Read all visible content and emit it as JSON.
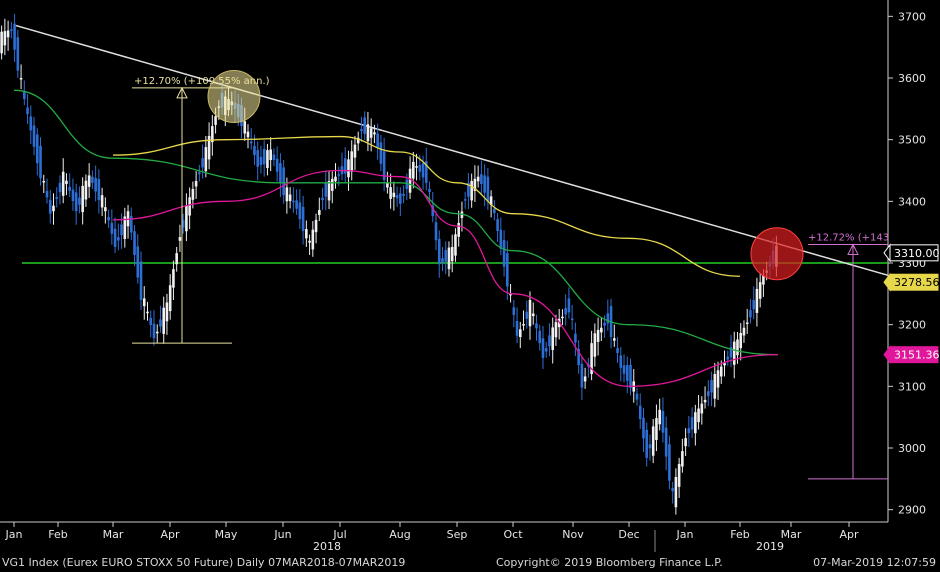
{
  "chart_data": {
    "type": "candlestick",
    "y_ticks": [
      "2900",
      "3000",
      "3100",
      "3200",
      "3300",
      "3400",
      "3500",
      "3600",
      "3700"
    ],
    "ylim": [
      2880,
      3720
    ],
    "x_ticks": [
      "Jan",
      "Feb",
      "Mar",
      "Apr",
      "May",
      "Jun",
      "Jul",
      "Aug",
      "Sep",
      "Oct",
      "Nov",
      "Dec",
      "Jan",
      "Feb",
      "Mar",
      "Apr"
    ],
    "year_labels": [
      "2018",
      "2019"
    ],
    "price_tags": [
      {
        "value": 3310.0,
        "label": "3310.00",
        "color": "#000000",
        "text_color": "#ffffff",
        "border": "#ffffff"
      },
      {
        "value": 3278.56,
        "label": "3278.56",
        "color": "#e6d84a",
        "text_color": "#000000",
        "border": "#e6d84a"
      },
      {
        "value": 3151.36,
        "label": "3151.36",
        "color": "#e0179a",
        "text_color": "#ffffff",
        "border": "#e0179a"
      }
    ],
    "annotations": [
      {
        "text": "+12.70% (+109.55% ann.)",
        "color": "#e8e0a0"
      },
      {
        "text": "+12.72% (+143",
        "color": "#d070d0"
      }
    ],
    "horizontal_line": {
      "value": 3300,
      "color": "#22cc22"
    },
    "trendline": {
      "from": [
        "Jan",
        3685
      ],
      "to": [
        "Apr",
        3280
      ],
      "color": "#e0e0e0"
    },
    "moving_averages": [
      {
        "color": "#e6d84a",
        "points": [
          [
            3475,
            "Mar"
          ],
          [
            3500,
            "May"
          ],
          [
            3505,
            "Jul"
          ],
          [
            3480,
            "Aug"
          ],
          [
            3430,
            "Sep"
          ],
          [
            3380,
            "Oct"
          ],
          [
            3340,
            "Dec"
          ],
          [
            3278.56,
            "Feb"
          ]
        ]
      },
      {
        "color": "#22aa44",
        "points": [
          [
            3580,
            "Jan"
          ],
          [
            3470,
            "Mar"
          ],
          [
            3430,
            "Jun"
          ],
          [
            3430,
            "Aug"
          ],
          [
            3380,
            "Sep"
          ],
          [
            3320,
            "Oct"
          ],
          [
            3200,
            "Dec"
          ],
          [
            3151.36,
            "Mar"
          ]
        ]
      },
      {
        "color": "#e0179a",
        "points": [
          [
            3370,
            "Mar"
          ],
          [
            3400,
            "May"
          ],
          [
            3450,
            "Jul"
          ],
          [
            3440,
            "Aug"
          ],
          [
            3360,
            "Sep"
          ],
          [
            3250,
            "Oct"
          ],
          [
            3100,
            "Dec"
          ],
          [
            3151.36,
            "Mar"
          ]
        ]
      }
    ],
    "price_path": [
      3660,
      3680,
      3560,
      3470,
      3380,
      3440,
      3390,
      3440,
      3400,
      3330,
      3380,
      3250,
      3180,
      3230,
      3350,
      3420,
      3480,
      3560,
      3560,
      3520,
      3460,
      3480,
      3420,
      3390,
      3330,
      3410,
      3440,
      3460,
      3520,
      3510,
      3420,
      3400,
      3460,
      3440,
      3300,
      3320,
      3410,
      3440,
      3400,
      3300,
      3180,
      3230,
      3150,
      3200,
      3230,
      3100,
      3180,
      3210,
      3130,
      3100,
      2990,
      3060,
      2920,
      3020,
      3060,
      3100,
      3140,
      3170,
      3220,
      3280,
      3320
    ],
    "footer": {
      "left": "VG1 Index (Eurex EURO STOXX 50 Future)  Daily 07MAR2018-07MAR2019",
      "center": "Copyright© 2019 Bloomberg Finance L.P.",
      "right": "07-Mar-2019 12:07:59"
    }
  }
}
